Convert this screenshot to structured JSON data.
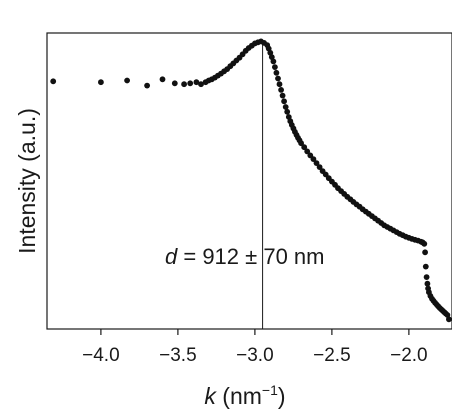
{
  "chart_data": {
    "type": "scatter",
    "title": "",
    "xlabel": {
      "var": "k",
      "unit_open": " (nm",
      "unit_exp": "−1",
      "unit_close": ")"
    },
    "ylabel": "Intensity (a.u.)",
    "xlim": [
      -4.35,
      -1.72
    ],
    "ylim": [
      0,
      1.0
    ],
    "x_ticks": [
      -4.0,
      -3.5,
      -3.0,
      -2.5,
      -2.0
    ],
    "x_tick_labels": [
      "−4.0",
      "−3.5",
      "−3.0",
      "−2.5",
      "−2.0"
    ],
    "y_ticks_shown": false,
    "grid": false,
    "legend": "none",
    "marker_color": "#111111",
    "annotation": {
      "var": "d",
      "text": " = 912 ± 70 nm"
    },
    "vline_x": -2.95,
    "series": [
      {
        "x": [
          -4.31,
          -4.0,
          -3.83,
          -3.7,
          -3.6,
          -3.52,
          -3.46,
          -3.42,
          -3.38,
          -3.35,
          -3.32,
          -3.3,
          -3.28,
          -3.26,
          -3.24,
          -3.22,
          -3.2,
          -3.18,
          -3.16,
          -3.14,
          -3.12,
          -3.1,
          -3.08,
          -3.06,
          -3.04,
          -3.02,
          -3.0,
          -2.98,
          -2.96,
          -2.94,
          -2.92,
          -2.91,
          -2.9,
          -2.89,
          -2.88,
          -2.87,
          -2.86,
          -2.85,
          -2.84,
          -2.83,
          -2.82,
          -2.81,
          -2.8,
          -2.79,
          -2.78,
          -2.77,
          -2.76,
          -2.75,
          -2.74,
          -2.73,
          -2.72,
          -2.71,
          -2.7,
          -2.68,
          -2.66,
          -2.64,
          -2.62,
          -2.6,
          -2.58,
          -2.56,
          -2.54,
          -2.52,
          -2.5,
          -2.48,
          -2.46,
          -2.44,
          -2.42,
          -2.4,
          -2.38,
          -2.36,
          -2.34,
          -2.32,
          -2.3,
          -2.28,
          -2.26,
          -2.24,
          -2.22,
          -2.2,
          -2.18,
          -2.16,
          -2.14,
          -2.12,
          -2.1,
          -2.08,
          -2.06,
          -2.04,
          -2.02,
          -2.0,
          -1.98,
          -1.96,
          -1.94,
          -1.92,
          -1.91,
          -1.9,
          -1.895,
          -1.89,
          -1.885,
          -1.88,
          -1.875,
          -1.87,
          -1.86,
          -1.85,
          -1.84,
          -1.83,
          -1.82,
          -1.81,
          -1.8,
          -1.79,
          -1.78,
          -1.77,
          -1.76,
          -1.75,
          -1.74
        ],
        "y": [
          0.855,
          0.852,
          0.858,
          0.84,
          0.862,
          0.848,
          0.845,
          0.848,
          0.852,
          0.845,
          0.852,
          0.858,
          0.862,
          0.868,
          0.875,
          0.882,
          0.89,
          0.898,
          0.908,
          0.918,
          0.928,
          0.938,
          0.95,
          0.962,
          0.972,
          0.98,
          0.988,
          0.992,
          0.995,
          0.99,
          0.982,
          0.97,
          0.955,
          0.94,
          0.925,
          0.905,
          0.885,
          0.865,
          0.845,
          0.825,
          0.805,
          0.785,
          0.765,
          0.748,
          0.73,
          0.715,
          0.702,
          0.69,
          0.678,
          0.667,
          0.657,
          0.648,
          0.638,
          0.624,
          0.609,
          0.595,
          0.582,
          0.568,
          0.554,
          0.54,
          0.528,
          0.515,
          0.503,
          0.492,
          0.48,
          0.47,
          0.46,
          0.45,
          0.441,
          0.432,
          0.423,
          0.415,
          0.406,
          0.398,
          0.39,
          0.382,
          0.374,
          0.366,
          0.358,
          0.35,
          0.344,
          0.338,
          0.332,
          0.326,
          0.32,
          0.315,
          0.31,
          0.306,
          0.302,
          0.299,
          0.296,
          0.292,
          0.29,
          0.285,
          0.255,
          0.205,
          0.168,
          0.145,
          0.128,
          0.115,
          0.102,
          0.092,
          0.085,
          0.078,
          0.072,
          0.066,
          0.06,
          0.055,
          0.05,
          0.045,
          0.04,
          0.035,
          0.02
        ]
      }
    ]
  }
}
